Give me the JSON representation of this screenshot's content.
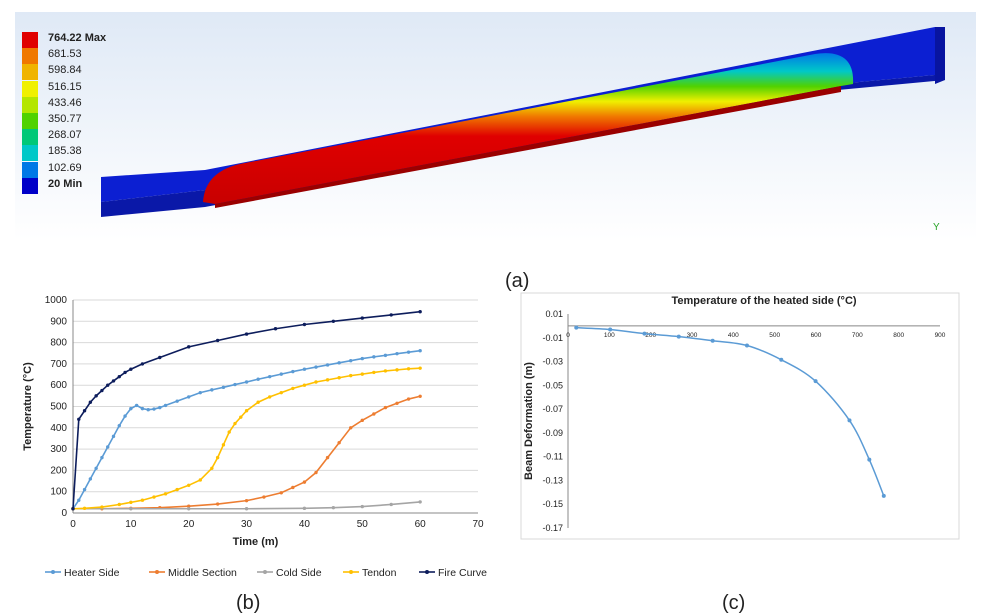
{
  "fea": {
    "legend": [
      {
        "label": "764.22 Max",
        "color": "#e00000",
        "bold": true
      },
      {
        "label": "681.53",
        "color": "#f07800",
        "bold": false
      },
      {
        "label": "598.84",
        "color": "#f0b400",
        "bold": false
      },
      {
        "label": "516.15",
        "color": "#f0f000",
        "bold": false
      },
      {
        "label": "433.46",
        "color": "#b4e600",
        "bold": false
      },
      {
        "label": "350.77",
        "color": "#50d200",
        "bold": false
      },
      {
        "label": "268.07",
        "color": "#00c878",
        "bold": false
      },
      {
        "label": "185.38",
        "color": "#00c8c8",
        "bold": false
      },
      {
        "label": "102.69",
        "color": "#0078e6",
        "bold": false
      },
      {
        "label": "20 Min",
        "color": "#0000c8",
        "bold": true
      }
    ],
    "axis_label": "Y"
  },
  "labels": {
    "a": "(a)",
    "b": "(b)",
    "c": "(c)"
  },
  "chart_data": [
    {
      "type": "line",
      "xlabel": "Time (m)",
      "ylabel": "Temperature (°C)",
      "xlim": [
        0,
        70
      ],
      "ylim": [
        0,
        1000
      ],
      "xticks": [
        "0",
        "10",
        "20",
        "30",
        "40",
        "50",
        "60",
        "70"
      ],
      "yticks": [
        "0",
        "100",
        "200",
        "300",
        "400",
        "500",
        "600",
        "700",
        "800",
        "900",
        "1000"
      ],
      "legend_position": "bottom",
      "grid": true,
      "series": [
        {
          "name": "Heater Side",
          "color": "#5b9bd5",
          "x": [
            0,
            1,
            2,
            3,
            4,
            5,
            6,
            7,
            8,
            9,
            10,
            11,
            12,
            13,
            14,
            15,
            16,
            18,
            20,
            22,
            24,
            26,
            28,
            30,
            32,
            34,
            36,
            38,
            40,
            42,
            44,
            46,
            48,
            50,
            52,
            54,
            56,
            58,
            60
          ],
          "y": [
            20,
            60,
            110,
            160,
            210,
            260,
            310,
            360,
            410,
            455,
            490,
            505,
            490,
            485,
            488,
            495,
            505,
            525,
            545,
            565,
            578,
            590,
            603,
            615,
            628,
            640,
            652,
            664,
            675,
            685,
            695,
            705,
            715,
            725,
            733,
            740,
            748,
            755,
            762
          ]
        },
        {
          "name": "Middle Section",
          "color": "#ed7d31",
          "x": [
            0,
            5,
            10,
            15,
            20,
            25,
            30,
            33,
            36,
            38,
            40,
            42,
            44,
            46,
            48,
            50,
            52,
            54,
            56,
            58,
            60
          ],
          "y": [
            20,
            20,
            22,
            25,
            32,
            42,
            58,
            75,
            95,
            120,
            145,
            190,
            260,
            330,
            400,
            435,
            465,
            495,
            515,
            535,
            548
          ]
        },
        {
          "name": "Cold Side",
          "color": "#a5a5a5",
          "x": [
            0,
            10,
            20,
            30,
            40,
            45,
            50,
            55,
            60
          ],
          "y": [
            20,
            20,
            20,
            20,
            22,
            25,
            30,
            40,
            52
          ]
        },
        {
          "name": "Tendon",
          "color": "#ffc000",
          "x": [
            0,
            2,
            5,
            8,
            10,
            12,
            14,
            16,
            18,
            20,
            22,
            24,
            25,
            26,
            27,
            28,
            29,
            30,
            32,
            34,
            36,
            38,
            40,
            42,
            44,
            46,
            48,
            50,
            52,
            54,
            56,
            58,
            60
          ],
          "y": [
            20,
            22,
            28,
            40,
            50,
            60,
            75,
            90,
            110,
            130,
            155,
            210,
            260,
            320,
            380,
            420,
            450,
            480,
            520,
            545,
            565,
            585,
            600,
            615,
            625,
            635,
            645,
            652,
            660,
            667,
            672,
            677,
            680
          ]
        },
        {
          "name": "Fire Curve",
          "color": "#0d1d5c",
          "x": [
            0,
            1,
            2,
            3,
            4,
            5,
            6,
            7,
            8,
            9,
            10,
            12,
            15,
            20,
            25,
            30,
            35,
            40,
            45,
            50,
            55,
            60
          ],
          "y": [
            20,
            440,
            480,
            520,
            550,
            575,
            600,
            620,
            640,
            660,
            675,
            700,
            730,
            780,
            810,
            840,
            865,
            885,
            900,
            915,
            930,
            945
          ]
        }
      ]
    },
    {
      "type": "line",
      "title": "Temperature of the heated side (°C)",
      "ylabel": "Beam Deformation (m)",
      "xlim": [
        0,
        900
      ],
      "ylim": [
        -0.17,
        0.01
      ],
      "xticks": [
        "0",
        "100",
        "200",
        "300",
        "400",
        "500",
        "600",
        "700",
        "800",
        "900"
      ],
      "yticks": [
        "0.01",
        "-0.01",
        "-0.03",
        "-0.05",
        "-0.07",
        "-0.09",
        "-0.11",
        "-0.13",
        "-0.15",
        "-0.17"
      ],
      "x_axis_position": "top",
      "grid": false,
      "series": [
        {
          "color": "#5b9bd5",
          "x": [
            20,
            102,
            185,
            268,
            350,
            433,
            516,
            599,
            681,
            729,
            764
          ],
          "y": [
            -0.0015,
            -0.003,
            -0.0065,
            -0.009,
            -0.0125,
            -0.0165,
            -0.0285,
            -0.0465,
            -0.0795,
            -0.1125,
            -0.143
          ]
        }
      ]
    }
  ]
}
